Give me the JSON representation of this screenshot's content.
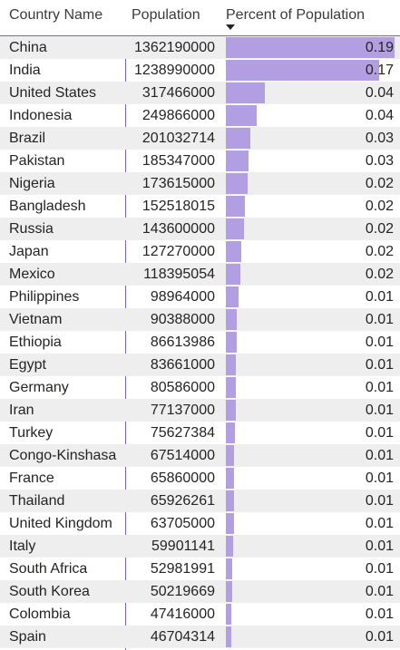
{
  "table": {
    "columns": {
      "country": "Country Name",
      "population": "Population",
      "percent": "Percent of Population"
    },
    "sort_icon": "sort-descending-icon",
    "bar_color": "#b29ee3",
    "rows": [
      {
        "country": "China",
        "population": "1362190000",
        "percent": "0.19"
      },
      {
        "country": "India",
        "population": "1238990000",
        "percent": "0.17"
      },
      {
        "country": "United States",
        "population": "317466000",
        "percent": "0.04"
      },
      {
        "country": "Indonesia",
        "population": "249866000",
        "percent": "0.04"
      },
      {
        "country": "Brazil",
        "population": "201032714",
        "percent": "0.03"
      },
      {
        "country": "Pakistan",
        "population": "185347000",
        "percent": "0.03"
      },
      {
        "country": "Nigeria",
        "population": "173615000",
        "percent": "0.02"
      },
      {
        "country": "Bangladesh",
        "population": "152518015",
        "percent": "0.02"
      },
      {
        "country": "Russia",
        "population": "143600000",
        "percent": "0.02"
      },
      {
        "country": "Japan",
        "population": "127270000",
        "percent": "0.02"
      },
      {
        "country": "Mexico",
        "population": "118395054",
        "percent": "0.02"
      },
      {
        "country": "Philippines",
        "population": "98964000",
        "percent": "0.01"
      },
      {
        "country": "Vietnam",
        "population": "90388000",
        "percent": "0.01"
      },
      {
        "country": "Ethiopia",
        "population": "86613986",
        "percent": "0.01"
      },
      {
        "country": "Egypt",
        "population": "83661000",
        "percent": "0.01"
      },
      {
        "country": "Germany",
        "population": "80586000",
        "percent": "0.01"
      },
      {
        "country": "Iran",
        "population": "77137000",
        "percent": "0.01"
      },
      {
        "country": "Turkey",
        "population": "75627384",
        "percent": "0.01"
      },
      {
        "country": "Congo-Kinshasa",
        "population": "67514000",
        "percent": "0.01"
      },
      {
        "country": "France",
        "population": "65860000",
        "percent": "0.01"
      },
      {
        "country": "Thailand",
        "population": "65926261",
        "percent": "0.01"
      },
      {
        "country": "United Kingdom",
        "population": "63705000",
        "percent": "0.01"
      },
      {
        "country": "Italy",
        "population": "59901141",
        "percent": "0.01"
      },
      {
        "country": "South Africa",
        "population": "52981991",
        "percent": "0.01"
      },
      {
        "country": "South Korea",
        "population": "50219669",
        "percent": "0.01"
      },
      {
        "country": "Colombia",
        "population": "47416000",
        "percent": "0.01"
      },
      {
        "country": "Spain",
        "population": "46704314",
        "percent": "0.01"
      }
    ]
  }
}
